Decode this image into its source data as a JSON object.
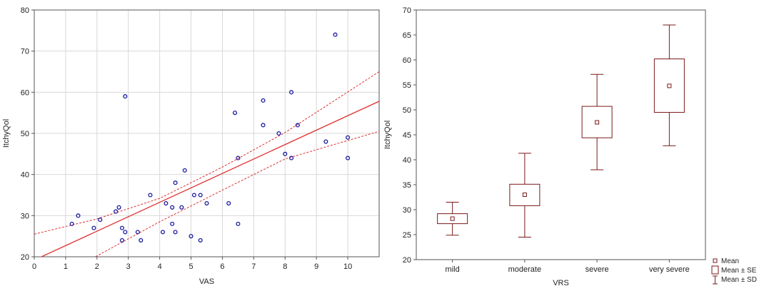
{
  "colors": {
    "scatter_point": "#1a1aa0",
    "regression": "#e03030",
    "box": "#7a1a1a",
    "grid": "#d8d8d8",
    "frame": "#555555",
    "text": "#222222"
  },
  "chart_data": [
    {
      "type": "scatter",
      "xlabel": "VAS",
      "ylabel": "ItchyQol",
      "xlim": [
        0,
        11
      ],
      "ylim": [
        20,
        80
      ],
      "xticks": [
        "0",
        "1",
        "2",
        "3",
        "4",
        "5",
        "6",
        "7",
        "8",
        "9",
        "10"
      ],
      "yticks": [
        "20",
        "30",
        "40",
        "50",
        "60",
        "70",
        "80"
      ],
      "grid": true,
      "points": [
        {
          "x": 1.2,
          "y": 28
        },
        {
          "x": 1.4,
          "y": 30
        },
        {
          "x": 1.9,
          "y": 27
        },
        {
          "x": 2.1,
          "y": 29
        },
        {
          "x": 2.6,
          "y": 31
        },
        {
          "x": 2.7,
          "y": 32
        },
        {
          "x": 2.8,
          "y": 27
        },
        {
          "x": 2.8,
          "y": 24
        },
        {
          "x": 2.9,
          "y": 26
        },
        {
          "x": 2.9,
          "y": 59
        },
        {
          "x": 3.3,
          "y": 26
        },
        {
          "x": 3.4,
          "y": 24
        },
        {
          "x": 3.7,
          "y": 35
        },
        {
          "x": 4.1,
          "y": 26
        },
        {
          "x": 4.2,
          "y": 33
        },
        {
          "x": 4.4,
          "y": 28
        },
        {
          "x": 4.4,
          "y": 32
        },
        {
          "x": 4.5,
          "y": 26
        },
        {
          "x": 4.5,
          "y": 38
        },
        {
          "x": 4.7,
          "y": 32
        },
        {
          "x": 4.8,
          "y": 41
        },
        {
          "x": 5.0,
          "y": 25
        },
        {
          "x": 5.1,
          "y": 35
        },
        {
          "x": 5.3,
          "y": 24
        },
        {
          "x": 5.3,
          "y": 35
        },
        {
          "x": 5.5,
          "y": 33
        },
        {
          "x": 6.2,
          "y": 33
        },
        {
          "x": 6.4,
          "y": 55
        },
        {
          "x": 6.5,
          "y": 44
        },
        {
          "x": 6.5,
          "y": 28
        },
        {
          "x": 7.3,
          "y": 58
        },
        {
          "x": 7.3,
          "y": 52
        },
        {
          "x": 7.8,
          "y": 50
        },
        {
          "x": 8.0,
          "y": 45
        },
        {
          "x": 8.2,
          "y": 60
        },
        {
          "x": 8.2,
          "y": 44
        },
        {
          "x": 8.4,
          "y": 52
        },
        {
          "x": 9.3,
          "y": 48
        },
        {
          "x": 9.6,
          "y": 74
        },
        {
          "x": 10.0,
          "y": 49
        },
        {
          "x": 10.0,
          "y": 44
        }
      ],
      "regression_line": [
        {
          "x": 0,
          "y": 19.2
        },
        {
          "x": 11,
          "y": 57.8
        }
      ],
      "ci_upper": [
        {
          "x": 0,
          "y": 25.5
        },
        {
          "x": 2,
          "y": 29.2
        },
        {
          "x": 4,
          "y": 34.2
        },
        {
          "x": 6,
          "y": 41.8
        },
        {
          "x": 8,
          "y": 50.2
        },
        {
          "x": 11,
          "y": 65
        }
      ],
      "ci_lower": [
        {
          "x": 0,
          "y": 13
        },
        {
          "x": 2,
          "y": 20.2
        },
        {
          "x": 4,
          "y": 28.5
        },
        {
          "x": 6,
          "y": 36.2
        },
        {
          "x": 8,
          "y": 43.8
        },
        {
          "x": 11,
          "y": 50.5
        }
      ]
    },
    {
      "type": "box",
      "xlabel": "VRS",
      "ylabel": "ItchyQol",
      "ylim": [
        20,
        70
      ],
      "yticks": [
        "20",
        "25",
        "30",
        "35",
        "40",
        "45",
        "50",
        "55",
        "60",
        "65",
        "70"
      ],
      "grid": false,
      "categories": [
        "mild",
        "moderate",
        "severe",
        "very severe"
      ],
      "mean": [
        28.2,
        33.0,
        47.5,
        54.8
      ],
      "se_low": [
        27.2,
        30.8,
        44.4,
        49.5
      ],
      "se_high": [
        29.2,
        35.1,
        50.7,
        60.2
      ],
      "sd_low": [
        24.9,
        24.5,
        38.0,
        42.8
      ],
      "sd_high": [
        31.5,
        41.3,
        57.1,
        67.0
      ],
      "legend_position": "bottom-right",
      "legend": [
        "Mean",
        "Mean ± SE",
        "Mean ± SD"
      ]
    }
  ]
}
